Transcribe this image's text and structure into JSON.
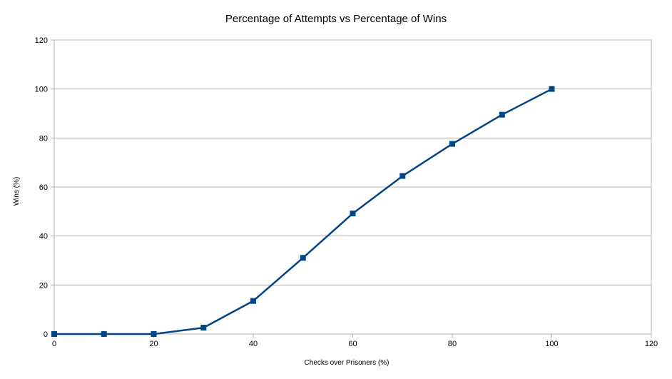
{
  "chart_data": {
    "type": "line",
    "title": "Percentage of Attempts vs Percentage of Wins",
    "xlabel": "Checks over Prisoners (%)",
    "ylabel": "Wins (%)",
    "xlim": [
      0,
      120
    ],
    "ylim": [
      0,
      120
    ],
    "x_ticks": [
      "0",
      "20",
      "40",
      "60",
      "80",
      "100",
      "120"
    ],
    "y_ticks": [
      "0",
      "20",
      "40",
      "60",
      "80",
      "100",
      "120"
    ],
    "grid": "horizontal",
    "legend": "none",
    "series": [
      {
        "color": "#004586",
        "marker": "square",
        "x": [
          0,
          10,
          20,
          30,
          40,
          50,
          60,
          70,
          80,
          90,
          100
        ],
        "y": [
          0,
          0,
          0,
          2.6,
          13.5,
          31.1,
          49.2,
          64.5,
          77.6,
          89.5,
          100
        ]
      }
    ]
  }
}
